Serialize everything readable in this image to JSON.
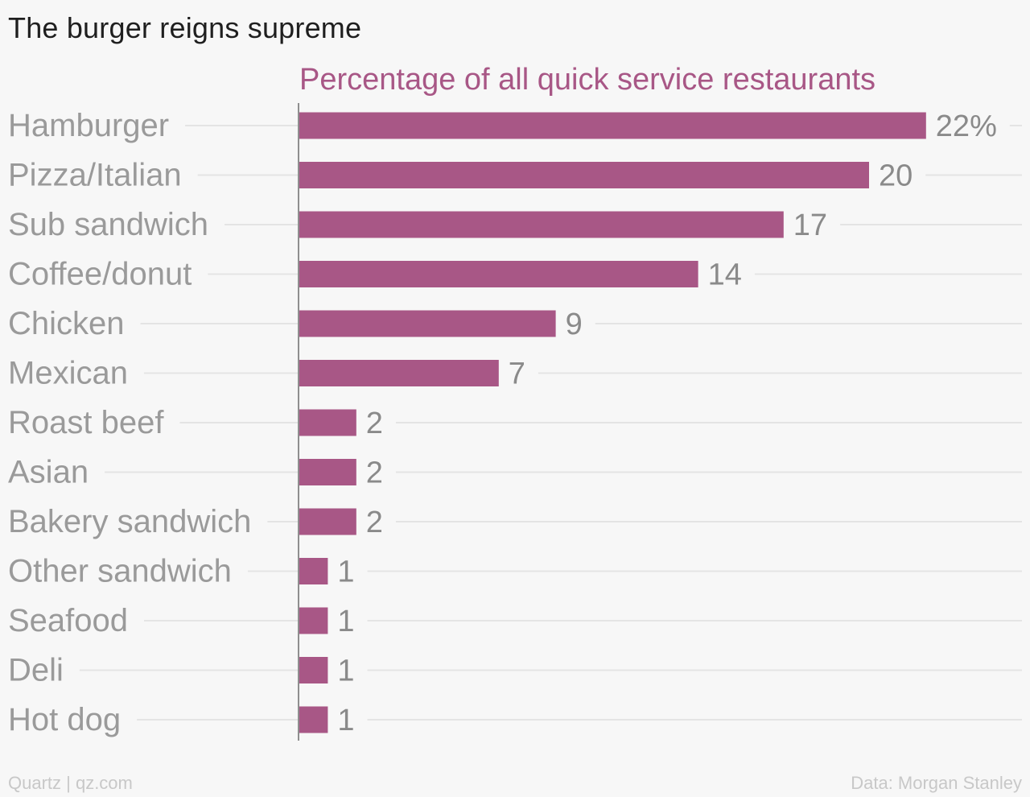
{
  "chart_data": {
    "type": "bar",
    "orientation": "horizontal",
    "title": "The burger reigns supreme",
    "series_label": "Percentage of all quick service restaurants",
    "categories": [
      "Hamburger",
      "Pizza/Italian",
      "Sub sandwich",
      "Coffee/donut",
      "Chicken",
      "Mexican",
      "Roast beef",
      "Asian",
      "Bakery sandwich",
      "Other sandwich",
      "Seafood",
      "Deli",
      "Hot dog"
    ],
    "values": [
      22,
      20,
      17,
      14,
      9,
      7,
      2,
      2,
      2,
      1,
      1,
      1,
      1
    ],
    "value_labels": [
      "22%",
      "20",
      "17",
      "14",
      "9",
      "7",
      "2",
      "2",
      "2",
      "1",
      "1",
      "1",
      "1"
    ],
    "xlim": [
      0,
      25
    ],
    "grid": false,
    "legend": "none",
    "colors": {
      "bar": "#a85786",
      "series_label": "#a85786",
      "category_label": "#9a9a9a",
      "value_label": "#8a8a8a",
      "guide_line": "#e4e4e4",
      "axis_line": "#8f8f8f",
      "title": "#1f1f1f",
      "footer": "#c8c8c8"
    }
  },
  "footer": {
    "credit": "Quartz | qz.com",
    "source": "Data: Morgan Stanley"
  }
}
